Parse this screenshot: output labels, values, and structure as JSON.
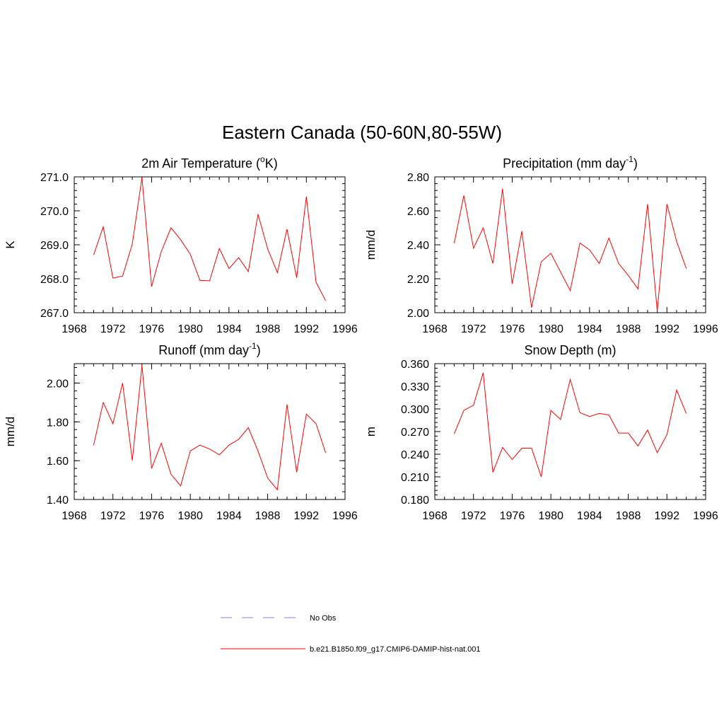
{
  "figure": {
    "title": "Eastern Canada (50-60N,80-55W)"
  },
  "legend": {
    "items": [
      {
        "label": "No Obs",
        "color": "#9a9af0",
        "style": "dashed"
      },
      {
        "label": "b.e21.B1850.f09_g17.CMIP6-DAMIP-hist-nat.001",
        "color": "#ff0000",
        "style": "solid"
      }
    ]
  },
  "chart_data": [
    {
      "type": "line",
      "title": "2m Air Temperature (°K)",
      "title_main": "2m Air Temperature (",
      "title_sup": "o",
      "title_tail": "K)",
      "xlabel": "",
      "ylabel": "K",
      "xlim": [
        1968,
        1996
      ],
      "ylim": [
        267.0,
        271.0
      ],
      "xticks": [
        1968,
        1972,
        1976,
        1980,
        1984,
        1988,
        1992,
        1996
      ],
      "yticks": [
        267.0,
        268.0,
        269.0,
        270.0,
        271.0
      ],
      "ytick_labels": [
        "267.0",
        "268.0",
        "269.0",
        "270.0",
        "271.0"
      ],
      "grid": false,
      "series": [
        {
          "color": "#ff0000",
          "x": [
            1970,
            1971,
            1972,
            1973,
            1974,
            1975,
            1976,
            1977,
            1978,
            1979,
            1980,
            1981,
            1982,
            1983,
            1984,
            1985,
            1986,
            1987,
            1988,
            1989,
            1990,
            1991,
            1992,
            1993,
            1994
          ],
          "values": [
            268.7,
            269.53,
            268.02,
            268.08,
            269.02,
            270.98,
            267.77,
            268.8,
            269.5,
            269.15,
            268.72,
            267.95,
            267.94,
            268.89,
            268.3,
            268.62,
            268.21,
            269.9,
            268.88,
            268.18,
            269.46,
            268.03,
            270.42,
            267.9,
            267.35
          ]
        }
      ]
    },
    {
      "type": "line",
      "title": "Precipitation (mm day^-1)",
      "title_main": "Precipitation (mm day",
      "title_sup": "-1",
      "title_tail": ")",
      "xlabel": "",
      "ylabel": "mm/d",
      "xlim": [
        1968,
        1996
      ],
      "ylim": [
        2.0,
        2.8
      ],
      "xticks": [
        1968,
        1972,
        1976,
        1980,
        1984,
        1988,
        1992,
        1996
      ],
      "yticks": [
        2.0,
        2.2,
        2.4,
        2.6,
        2.8
      ],
      "ytick_labels": [
        "2.00",
        "2.20",
        "2.40",
        "2.60",
        "2.80"
      ],
      "grid": false,
      "series": [
        {
          "color": "#ff0000",
          "x": [
            1970,
            1971,
            1972,
            1973,
            1974,
            1975,
            1976,
            1977,
            1978,
            1979,
            1980,
            1981,
            1982,
            1983,
            1984,
            1985,
            1986,
            1987,
            1988,
            1989,
            1990,
            1991,
            1992,
            1993,
            1994
          ],
          "values": [
            2.41,
            2.69,
            2.38,
            2.5,
            2.29,
            2.73,
            2.17,
            2.48,
            2.03,
            2.3,
            2.35,
            2.24,
            2.13,
            2.41,
            2.37,
            2.29,
            2.44,
            2.29,
            2.22,
            2.14,
            2.64,
            2.01,
            2.64,
            2.42,
            2.26
          ]
        }
      ]
    },
    {
      "type": "line",
      "title": "Runoff (mm day^-1)",
      "title_main": "Runoff (mm day",
      "title_sup": "-1",
      "title_tail": ")",
      "xlabel": "",
      "ylabel": "mm/d",
      "xlim": [
        1968,
        1996
      ],
      "ylim": [
        1.4,
        2.1
      ],
      "xticks": [
        1968,
        1972,
        1976,
        1980,
        1984,
        1988,
        1992,
        1996
      ],
      "yticks": [
        1.4,
        1.6,
        1.8,
        2.0
      ],
      "ytick_labels": [
        "1.40",
        "1.60",
        "1.80",
        "2.00"
      ],
      "grid": false,
      "series": [
        {
          "color": "#ff0000",
          "x": [
            1970,
            1971,
            1972,
            1973,
            1974,
            1975,
            1976,
            1977,
            1978,
            1979,
            1980,
            1981,
            1982,
            1983,
            1984,
            1985,
            1986,
            1987,
            1988,
            1989,
            1990,
            1991,
            1992,
            1993,
            1994
          ],
          "values": [
            1.68,
            1.9,
            1.79,
            2.0,
            1.6,
            2.09,
            1.56,
            1.69,
            1.53,
            1.47,
            1.65,
            1.68,
            1.66,
            1.63,
            1.68,
            1.71,
            1.77,
            1.65,
            1.51,
            1.45,
            1.89,
            1.54,
            1.84,
            1.79,
            1.64
          ]
        }
      ]
    },
    {
      "type": "line",
      "title": "Snow Depth (m)",
      "title_main": "Snow Depth (m)",
      "title_sup": "",
      "title_tail": "",
      "xlabel": "",
      "ylabel": "m",
      "xlim": [
        1968,
        1996
      ],
      "ylim": [
        0.18,
        0.36
      ],
      "xticks": [
        1968,
        1972,
        1976,
        1980,
        1984,
        1988,
        1992,
        1996
      ],
      "yticks": [
        0.18,
        0.21,
        0.24,
        0.27,
        0.3,
        0.33,
        0.36
      ],
      "ytick_labels": [
        "0.180",
        "0.210",
        "0.240",
        "0.270",
        "0.300",
        "0.330",
        "0.360"
      ],
      "grid": false,
      "series": [
        {
          "color": "#ff0000",
          "x": [
            1970,
            1971,
            1972,
            1973,
            1974,
            1975,
            1976,
            1977,
            1978,
            1979,
            1980,
            1981,
            1982,
            1983,
            1984,
            1985,
            1986,
            1987,
            1988,
            1989,
            1990,
            1991,
            1992,
            1993,
            1994
          ],
          "values": [
            0.267,
            0.298,
            0.305,
            0.348,
            0.216,
            0.249,
            0.233,
            0.248,
            0.248,
            0.21,
            0.298,
            0.286,
            0.339,
            0.295,
            0.29,
            0.294,
            0.292,
            0.268,
            0.268,
            0.251,
            0.272,
            0.242,
            0.266,
            0.325,
            0.294
          ]
        }
      ]
    }
  ]
}
